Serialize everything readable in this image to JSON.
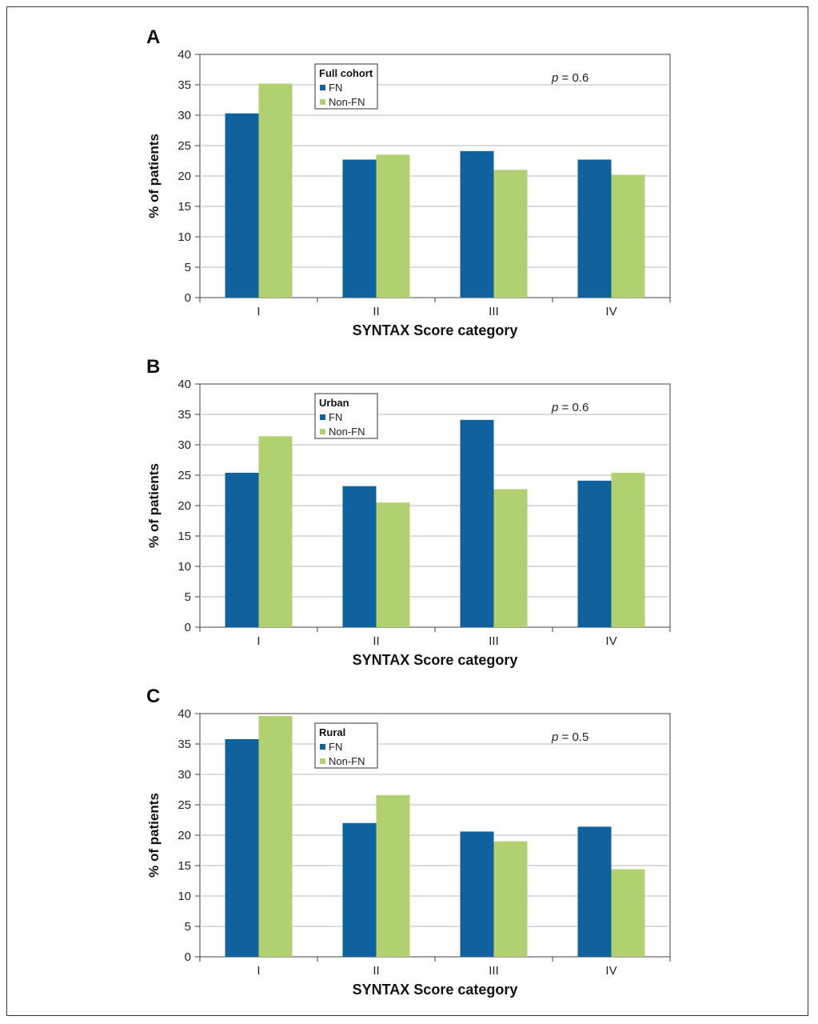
{
  "colors": {
    "fn": "#10629e",
    "non_fn": "#b1d06f",
    "grid": "#c8c8c8",
    "axis": "#404040"
  },
  "chart_data": [
    {
      "type": "bar",
      "panel_label": "A",
      "legend_title": "Full cohort",
      "p_value_var": "p",
      "p_value_text": " = 0.6",
      "categories": [
        "I",
        "II",
        "III",
        "IV"
      ],
      "series": [
        {
          "name": "FN",
          "values": [
            30.3,
            22.7,
            24.1,
            22.7
          ]
        },
        {
          "name": "Non-FN",
          "values": [
            35.2,
            23.5,
            21.0,
            20.2
          ]
        }
      ],
      "xlabel": "SYNTAX Score category",
      "ylabel": "% of patients",
      "ylim": [
        0,
        40
      ],
      "yticks": [
        0,
        5,
        10,
        15,
        20,
        25,
        30,
        35,
        40
      ],
      "grid": true,
      "legend_position": "top-left"
    },
    {
      "type": "bar",
      "panel_label": "B",
      "legend_title": "Urban",
      "p_value_var": "p",
      "p_value_text": " = 0.6",
      "categories": [
        "I",
        "II",
        "III",
        "IV"
      ],
      "series": [
        {
          "name": "FN",
          "values": [
            25.4,
            23.2,
            34.1,
            24.1
          ]
        },
        {
          "name": "Non-FN",
          "values": [
            31.4,
            20.5,
            22.7,
            25.4
          ]
        }
      ],
      "xlabel": "SYNTAX Score category",
      "ylabel": "% of patients",
      "ylim": [
        0,
        40
      ],
      "yticks": [
        0,
        5,
        10,
        15,
        20,
        25,
        30,
        35,
        40
      ],
      "grid": true,
      "legend_position": "top-left"
    },
    {
      "type": "bar",
      "panel_label": "C",
      "legend_title": "Rural",
      "p_value_var": "p",
      "p_value_text": " = 0.5",
      "categories": [
        "I",
        "II",
        "III",
        "IV"
      ],
      "series": [
        {
          "name": "FN",
          "values": [
            35.8,
            22.0,
            20.6,
            21.4
          ]
        },
        {
          "name": "Non-FN",
          "values": [
            39.6,
            26.6,
            19.0,
            14.4
          ]
        }
      ],
      "xlabel": "SYNTAX Score category",
      "ylabel": "% of patients",
      "ylim": [
        0,
        40
      ],
      "yticks": [
        0,
        5,
        10,
        15,
        20,
        25,
        30,
        35,
        40
      ],
      "grid": true,
      "legend_position": "top-left"
    }
  ]
}
